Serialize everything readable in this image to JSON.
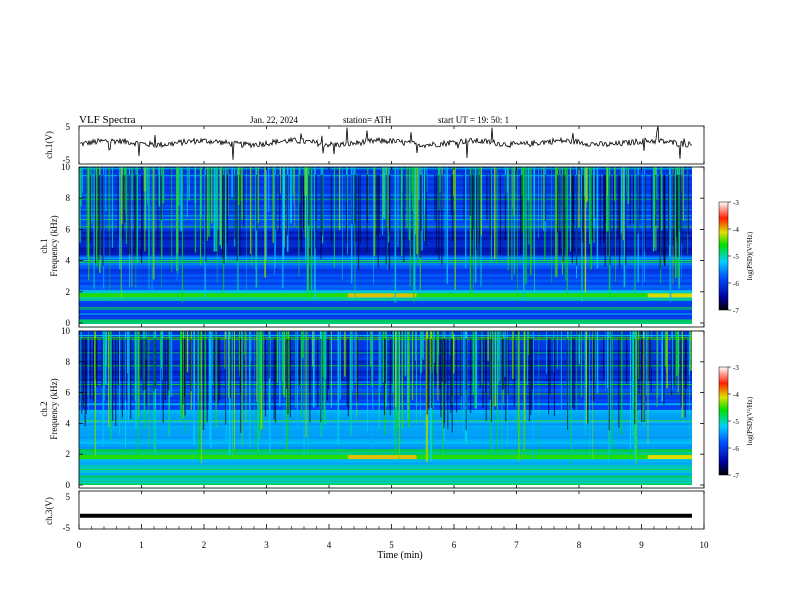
{
  "header": {
    "title": "VLF Spectra",
    "date": "Jan. 22, 2024",
    "station": "station= ATH",
    "start": "start UT = 19: 50: 1"
  },
  "chart_data": [
    {
      "type": "line",
      "ylabel": "ch.1(V)",
      "ylim": [
        -5,
        5
      ],
      "yticks": [
        "5",
        "-5"
      ],
      "x_range_min": [
        0,
        9.8
      ],
      "description_values": "noisy waveform around +1 V with amplitude ~1-2 V and occasional spikes"
    },
    {
      "type": "heatmap",
      "channel": "ch.1",
      "ylabel": "Frequency (kHz)",
      "ylim": [
        0,
        10
      ],
      "yticks": [
        "0",
        "2",
        "4",
        "6",
        "8",
        "10"
      ],
      "colorbar_label": "log(PSD)(V²/Hz)",
      "colorbar_range": [
        -7,
        -3
      ],
      "colorbar_ticks": [
        "-3",
        "-4",
        "-5",
        "-6",
        "-7"
      ]
    },
    {
      "type": "heatmap",
      "channel": "ch.2",
      "ylabel": "Frequency (kHz)",
      "ylim": [
        0,
        10
      ],
      "yticks": [
        "0",
        "2",
        "4",
        "6",
        "8",
        "10"
      ],
      "colorbar_label": "log(PSD)(V²/Hz)",
      "colorbar_range": [
        -7,
        -3
      ],
      "colorbar_ticks": [
        "-3",
        "-4",
        "-5",
        "-6",
        "-7"
      ]
    },
    {
      "type": "line",
      "ylabel": "ch.3(V)",
      "ylim": [
        -5,
        5
      ],
      "yticks": [
        "5",
        "-5"
      ],
      "values_constant": -1.5
    }
  ],
  "xaxis": {
    "label": "Time (min)",
    "ticks": [
      "0",
      "1",
      "2",
      "3",
      "4",
      "5",
      "6",
      "7",
      "8",
      "9",
      "10"
    ],
    "xlim": [
      0,
      10
    ]
  },
  "colors": {
    "spectrogram_low": "#000080",
    "spectrogram_mid": "#00c8ff",
    "spectrogram_high": "#ff0000"
  }
}
